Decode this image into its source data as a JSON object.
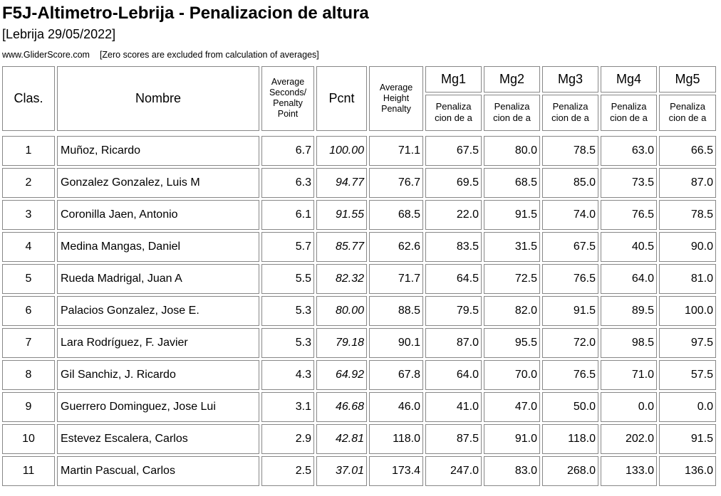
{
  "header": {
    "title": "F5J-Altimetro-Lebrija - Penalizacion de altura",
    "subtitle": "[Lebrija 29/05/2022]",
    "source": "www.GliderScore.com",
    "note": "[Zero scores are excluded from calculation of averages]"
  },
  "table": {
    "header": {
      "clas": "Clas.",
      "nombre": "Nombre",
      "avg_seconds_lines": [
        "Average",
        "Seconds/",
        "Penalty",
        "Point"
      ],
      "pcnt": "Pcnt",
      "avg_height_lines": [
        "Average",
        "Height",
        "Penalty"
      ],
      "mg_cols": [
        "Mg1",
        "Mg2",
        "Mg3",
        "Mg4",
        "Mg5"
      ],
      "mg_sub_lines": [
        "Penaliza",
        "cion de a"
      ]
    },
    "rows": [
      {
        "clas": "1",
        "nombre": "Muñoz, Ricardo",
        "avg_seconds": "6.7",
        "pcnt": "100.00",
        "avg_height": "71.1",
        "mg": [
          "67.5",
          "80.0",
          "78.5",
          "63.0",
          "66.5"
        ]
      },
      {
        "clas": "2",
        "nombre": "Gonzalez Gonzalez, Luis M",
        "avg_seconds": "6.3",
        "pcnt": "94.77",
        "avg_height": "76.7",
        "mg": [
          "69.5",
          "68.5",
          "85.0",
          "73.5",
          "87.0"
        ]
      },
      {
        "clas": "3",
        "nombre": "Coronilla Jaen, Antonio",
        "avg_seconds": "6.1",
        "pcnt": "91.55",
        "avg_height": "68.5",
        "mg": [
          "22.0",
          "91.5",
          "74.0",
          "76.5",
          "78.5"
        ]
      },
      {
        "clas": "4",
        "nombre": "Medina Mangas, Daniel",
        "avg_seconds": "5.7",
        "pcnt": "85.77",
        "avg_height": "62.6",
        "mg": [
          "83.5",
          "31.5",
          "67.5",
          "40.5",
          "90.0"
        ]
      },
      {
        "clas": "5",
        "nombre": "Rueda Madrigal, Juan A",
        "avg_seconds": "5.5",
        "pcnt": "82.32",
        "avg_height": "71.7",
        "mg": [
          "64.5",
          "72.5",
          "76.5",
          "64.0",
          "81.0"
        ]
      },
      {
        "clas": "6",
        "nombre": "Palacios Gonzalez, Jose E.",
        "avg_seconds": "5.3",
        "pcnt": "80.00",
        "avg_height": "88.5",
        "mg": [
          "79.5",
          "82.0",
          "91.5",
          "89.5",
          "100.0"
        ]
      },
      {
        "clas": "7",
        "nombre": "Lara Rodríguez, F. Javier",
        "avg_seconds": "5.3",
        "pcnt": "79.18",
        "avg_height": "90.1",
        "mg": [
          "87.0",
          "95.5",
          "72.0",
          "98.5",
          "97.5"
        ]
      },
      {
        "clas": "8",
        "nombre": "Gil Sanchiz, J. Ricardo",
        "avg_seconds": "4.3",
        "pcnt": "64.92",
        "avg_height": "67.8",
        "mg": [
          "64.0",
          "70.0",
          "76.5",
          "71.0",
          "57.5"
        ]
      },
      {
        "clas": "9",
        "nombre": "Guerrero Dominguez, Jose Lui",
        "avg_seconds": "3.1",
        "pcnt": "46.68",
        "avg_height": "46.0",
        "mg": [
          "41.0",
          "47.0",
          "50.0",
          "0.0",
          "0.0"
        ]
      },
      {
        "clas": "10",
        "nombre": "Estevez Escalera, Carlos",
        "avg_seconds": "2.9",
        "pcnt": "42.81",
        "avg_height": "118.0",
        "mg": [
          "87.5",
          "91.0",
          "118.0",
          "202.0",
          "91.5"
        ]
      },
      {
        "clas": "11",
        "nombre": "Martin Pascual, Carlos",
        "avg_seconds": "2.5",
        "pcnt": "37.01",
        "avg_height": "173.4",
        "mg": [
          "247.0",
          "83.0",
          "268.0",
          "133.0",
          "136.0"
        ]
      }
    ]
  },
  "annotations": [
    {
      "name": "green-highlight-marker",
      "style": "green",
      "color": "#1be10e",
      "row_index": 2,
      "mg_index": 0,
      "value_marked": "22.0"
    },
    {
      "name": "red-underline-marker",
      "style": "red",
      "color": "#e8150b",
      "row_index": 10,
      "mg_index": 2,
      "value_marked": "268.0"
    }
  ],
  "colors": {
    "table_border": "#878787",
    "text": "#000000",
    "background": "#ffffff"
  }
}
